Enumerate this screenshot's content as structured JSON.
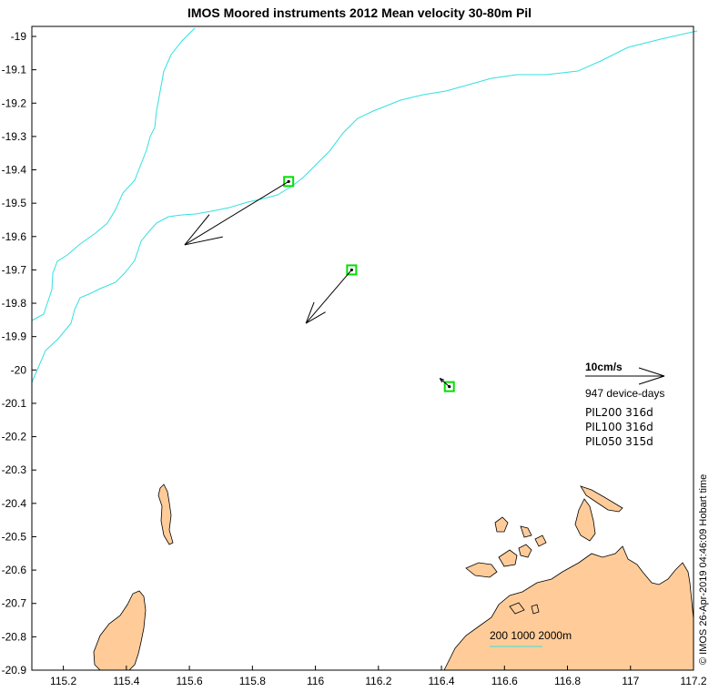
{
  "title": "IMOS Moored instruments 2012 Mean velocity 30-80m Pil",
  "axes": {
    "x_ticks": [
      "115.2",
      "115.4",
      "115.6",
      "115.8",
      "116",
      "116.2",
      "116.4",
      "116.6",
      "116.8",
      "117",
      "117.2"
    ],
    "y_ticks": [
      "-19",
      "-19.1",
      "-19.2",
      "-19.3",
      "-19.4",
      "-19.5",
      "-19.6",
      "-19.7",
      "-19.8",
      "-19.9",
      "-20",
      "-20.1",
      "-20.2",
      "-20.3",
      "-20.4",
      "-20.5",
      "-20.6",
      "-20.7",
      "-20.8",
      "-20.9"
    ],
    "xlim": [
      115.1,
      117.2
    ],
    "ylim": [
      -20.9,
      -18.97
    ]
  },
  "legend": {
    "scale_label": "10cm/s",
    "device_days": "947 device-days",
    "instruments": [
      "PIL200 316d",
      "PIL100 316d",
      "PIL050 315d"
    ]
  },
  "depth_legend": {
    "label": "200 1000 2000m"
  },
  "timestamp": "© IMOS 26-Apr-2019 04:46:09 Hobart time",
  "colors": {
    "land": "#FFCC99",
    "isobath": "#33E0E0",
    "mooring_box": "#00E000"
  },
  "moorings": [
    {
      "lon": 115.915,
      "lat": -19.435,
      "tip_lon": 115.585,
      "tip_lat": -19.625
    },
    {
      "lon": 116.115,
      "lat": -19.7,
      "tip_lon": 115.97,
      "tip_lat": -19.86
    },
    {
      "lon": 116.425,
      "lat": -20.05,
      "tip_lon": 116.395,
      "tip_lat": -20.025
    }
  ]
}
